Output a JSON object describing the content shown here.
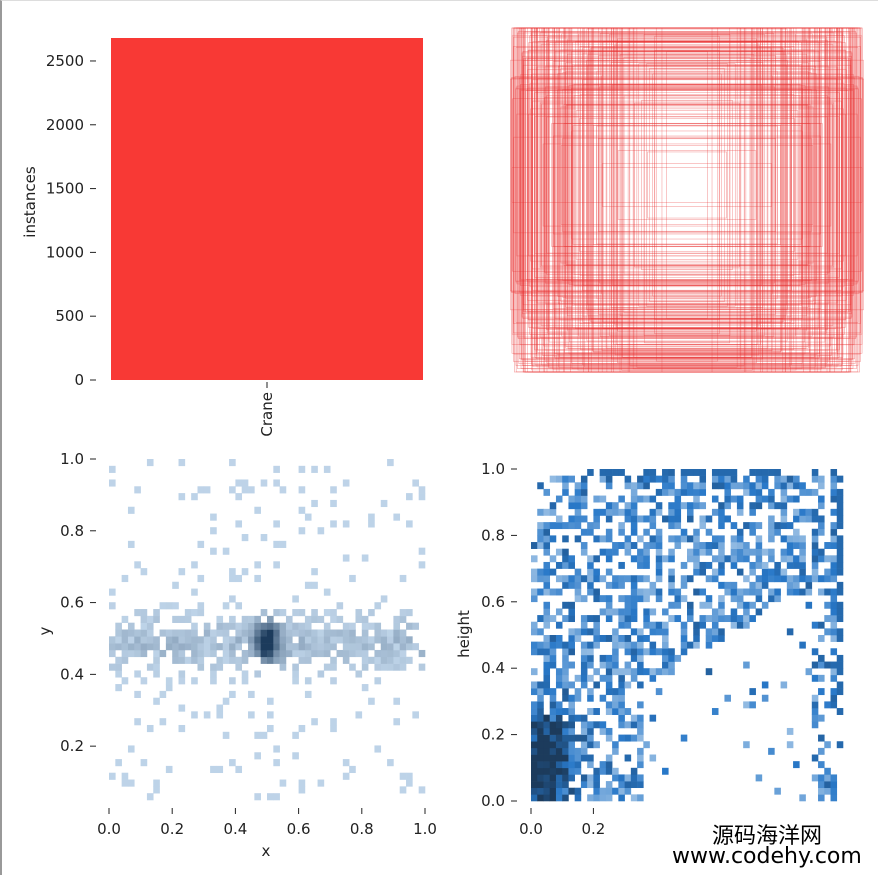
{
  "colors": {
    "bar": "#f83935",
    "box": "#e83030",
    "heat_light": "#c6dbef",
    "heat_dark": "#1c3b5c",
    "heat_blue": "#3a8fd6"
  },
  "watermark": {
    "line1": "源码海洋网",
    "line2": "www.codehy.com"
  },
  "chart_data": [
    {
      "type": "bar",
      "categories": [
        "Crane"
      ],
      "values": [
        2680
      ],
      "xlabel": "",
      "ylabel": "instances",
      "ylim": [
        0,
        2680
      ],
      "yticks": [
        0,
        500,
        1000,
        1500,
        2000,
        2500
      ],
      "ytick_labels": [
        "0",
        "500",
        "1000",
        "1500",
        "2000",
        "2500"
      ]
    },
    {
      "type": "boxes",
      "description_count": 1000,
      "box_center": [
        0.5,
        0.5
      ],
      "xlim": [
        0,
        1
      ],
      "ylim": [
        0,
        1
      ]
    },
    {
      "type": "heatmap",
      "xlabel": "x",
      "ylabel": "y",
      "xlim": [
        0,
        1
      ],
      "ylim": [
        0.05,
        1.0
      ],
      "xticks": [
        0.0,
        0.2,
        0.4,
        0.6,
        0.8,
        1.0
      ],
      "xtick_labels": [
        "0.0",
        "0.2",
        "0.4",
        "0.6",
        "0.8",
        "1.0"
      ],
      "yticks": [
        0.2,
        0.4,
        0.6,
        0.8,
        1.0
      ],
      "ytick_labels": [
        "0.2",
        "0.4",
        "0.6",
        "0.8",
        "1.0"
      ],
      "hotspot": [
        0.5,
        0.49
      ]
    },
    {
      "type": "heatmap",
      "xlabel": "",
      "ylabel": "height",
      "xlim": [
        0,
        1
      ],
      "ylim": [
        0,
        1
      ],
      "xticks": [
        0.0,
        0.2
      ],
      "xtick_labels": [
        "0.0",
        "0.2"
      ],
      "yticks": [
        0.0,
        0.2,
        0.4,
        0.6,
        0.8,
        1.0
      ],
      "ytick_labels": [
        "0.0",
        "0.2",
        "0.4",
        "0.6",
        "0.8",
        "1.0"
      ],
      "hotspot": [
        0.05,
        0.12
      ]
    }
  ]
}
